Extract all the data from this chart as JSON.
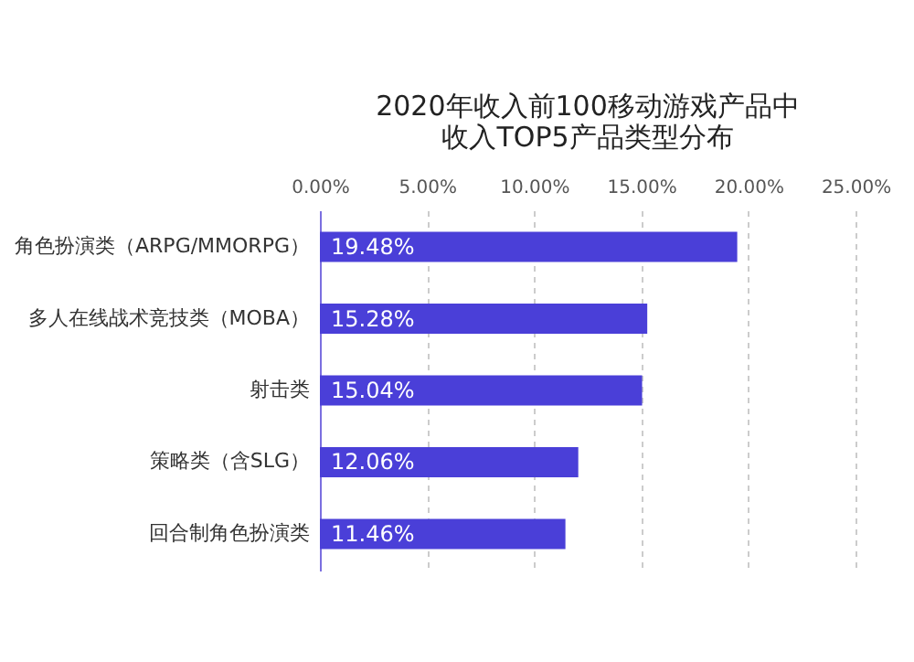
{
  "chart_data": {
    "type": "bar",
    "orientation": "horizontal",
    "title": [
      "2020年收入前100移动游戏产品中",
      "收入TOP5产品类型分布"
    ],
    "categories": [
      "角色扮演类（ARPG/MMORPG）",
      "多人在线战术竞技类（MOBA）",
      "射击类",
      "策略类（含SLG）",
      "回合制角色扮演类"
    ],
    "values": [
      19.48,
      15.28,
      15.04,
      12.06,
      11.46
    ],
    "value_labels": [
      "19.48%",
      "15.28%",
      "15.04%",
      "12.06%",
      "11.46%"
    ],
    "color": "#4a3fd8",
    "xlim": [
      0,
      25
    ],
    "xticks": [
      {
        "value": 0,
        "label": "0.00%"
      },
      {
        "value": 5,
        "label": "5.00%"
      },
      {
        "value": 10,
        "label": "10.00%"
      },
      {
        "value": 15,
        "label": "15.00%"
      },
      {
        "value": 20,
        "label": "20.00%"
      },
      {
        "value": 25,
        "label": "25.00%"
      }
    ],
    "grid": "x"
  }
}
